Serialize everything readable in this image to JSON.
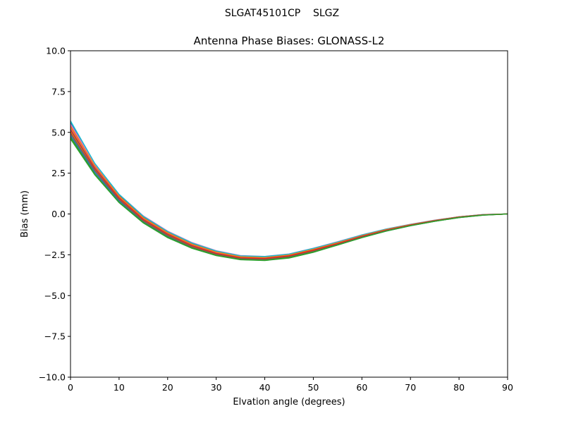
{
  "figure": {
    "suptitle": "SLGAT45101CP    SLGZ"
  },
  "chart_data": {
    "type": "line",
    "title": "Antenna Phase Biases: GLONASS-L2",
    "xlabel": "Elvation angle (degrees)",
    "ylabel": "Bias (mm)",
    "xlim": [
      0,
      90
    ],
    "ylim": [
      -10,
      10
    ],
    "grid": false,
    "x": [
      0,
      5,
      10,
      15,
      20,
      25,
      30,
      35,
      40,
      45,
      50,
      55,
      60,
      65,
      70,
      75,
      80,
      85,
      90
    ],
    "x_ticks": [
      "0",
      "10",
      "20",
      "30",
      "40",
      "50",
      "60",
      "70",
      "80",
      "90"
    ],
    "y_ticks": [
      "−10.0",
      "−7.5",
      "−5.0",
      "−2.5",
      "0.0",
      "2.5",
      "5.0",
      "7.5",
      "10.0"
    ],
    "series": [
      {
        "color": "#1f77b4",
        "values": [
          5.6,
          3.0,
          1.1,
          -0.2,
          -1.1,
          -1.8,
          -2.3,
          -2.6,
          -2.65,
          -2.5,
          -2.15,
          -1.75,
          -1.3,
          -0.95,
          -0.65,
          -0.4,
          -0.18,
          -0.05,
          0.0
        ]
      },
      {
        "color": "#ff7f0e",
        "values": [
          5.3,
          2.9,
          1.0,
          -0.3,
          -1.2,
          -1.9,
          -2.4,
          -2.7,
          -2.75,
          -2.6,
          -2.25,
          -1.85,
          -1.4,
          -1.0,
          -0.7,
          -0.42,
          -0.2,
          -0.06,
          0.0
        ]
      },
      {
        "color": "#2ca02c",
        "values": [
          4.6,
          2.4,
          0.7,
          -0.55,
          -1.45,
          -2.1,
          -2.55,
          -2.8,
          -2.85,
          -2.7,
          -2.35,
          -1.9,
          -1.45,
          -1.05,
          -0.72,
          -0.45,
          -0.22,
          -0.07,
          0.0
        ]
      },
      {
        "color": "#d62728",
        "values": [
          5.0,
          2.7,
          0.9,
          -0.4,
          -1.3,
          -2.0,
          -2.45,
          -2.72,
          -2.78,
          -2.62,
          -2.28,
          -1.87,
          -1.42,
          -1.02,
          -0.71,
          -0.43,
          -0.2,
          -0.06,
          0.0
        ]
      },
      {
        "color": "#9467bd",
        "values": [
          5.2,
          2.85,
          1.0,
          -0.32,
          -1.22,
          -1.92,
          -2.4,
          -2.68,
          -2.72,
          -2.56,
          -2.2,
          -1.8,
          -1.36,
          -0.98,
          -0.68,
          -0.41,
          -0.19,
          -0.05,
          0.0
        ]
      },
      {
        "color": "#8c564b",
        "values": [
          5.4,
          3.0,
          1.15,
          -0.18,
          -1.1,
          -1.8,
          -2.28,
          -2.58,
          -2.62,
          -2.47,
          -2.12,
          -1.73,
          -1.3,
          -0.93,
          -0.64,
          -0.39,
          -0.17,
          -0.04,
          0.0
        ]
      },
      {
        "color": "#e377c2",
        "values": [
          5.5,
          3.05,
          1.2,
          -0.12,
          -1.05,
          -1.75,
          -2.25,
          -2.55,
          -2.6,
          -2.45,
          -2.1,
          -1.7,
          -1.28,
          -0.92,
          -0.63,
          -0.38,
          -0.17,
          -0.04,
          0.0
        ]
      },
      {
        "color": "#7f7f7f",
        "values": [
          4.9,
          2.65,
          0.85,
          -0.45,
          -1.35,
          -2.03,
          -2.5,
          -2.76,
          -2.8,
          -2.64,
          -2.3,
          -1.88,
          -1.43,
          -1.03,
          -0.71,
          -0.44,
          -0.21,
          -0.06,
          0.0
        ]
      },
      {
        "color": "#bcbd22",
        "values": [
          5.1,
          2.75,
          0.95,
          -0.36,
          -1.26,
          -1.96,
          -2.43,
          -2.7,
          -2.74,
          -2.58,
          -2.23,
          -1.83,
          -1.38,
          -0.99,
          -0.69,
          -0.42,
          -0.2,
          -0.05,
          0.0
        ]
      },
      {
        "color": "#17becf",
        "values": [
          5.7,
          3.1,
          1.2,
          -0.15,
          -1.08,
          -1.78,
          -2.27,
          -2.57,
          -2.61,
          -2.46,
          -2.11,
          -1.72,
          -1.29,
          -0.93,
          -0.64,
          -0.39,
          -0.17,
          -0.04,
          0.0
        ]
      },
      {
        "color": "#1f77b4",
        "values": [
          4.8,
          2.55,
          0.8,
          -0.48,
          -1.38,
          -2.05,
          -2.52,
          -2.78,
          -2.82,
          -2.66,
          -2.31,
          -1.89,
          -1.44,
          -1.04,
          -0.72,
          -0.44,
          -0.21,
          -0.06,
          0.0
        ]
      },
      {
        "color": "#ff7f0e",
        "values": [
          5.35,
          2.95,
          1.08,
          -0.25,
          -1.16,
          -1.86,
          -2.34,
          -2.63,
          -2.68,
          -2.52,
          -2.17,
          -1.77,
          -1.34,
          -0.96,
          -0.66,
          -0.4,
          -0.18,
          -0.05,
          0.0
        ]
      },
      {
        "color": "#d62728",
        "values": [
          5.15,
          2.8,
          0.98,
          -0.34,
          -1.24,
          -1.94,
          -2.42,
          -2.69,
          -2.73,
          -2.57,
          -2.22,
          -1.82,
          -1.37,
          -0.99,
          -0.68,
          -0.41,
          -0.19,
          -0.05,
          0.0
        ]
      },
      {
        "color": "#8c564b",
        "values": [
          4.95,
          2.68,
          0.88,
          -0.42,
          -1.32,
          -2.01,
          -2.48,
          -2.74,
          -2.79,
          -2.63,
          -2.29,
          -1.87,
          -1.42,
          -1.02,
          -0.71,
          -0.43,
          -0.2,
          -0.06,
          0.0
        ]
      },
      {
        "color": "#2ca02c",
        "values": [
          4.7,
          2.45,
          0.72,
          -0.52,
          -1.42,
          -2.08,
          -2.53,
          -2.79,
          -2.84,
          -2.68,
          -2.33,
          -1.9,
          -1.45,
          -1.05,
          -0.72,
          -0.45,
          -0.22,
          -0.07,
          0.0
        ]
      }
    ]
  }
}
